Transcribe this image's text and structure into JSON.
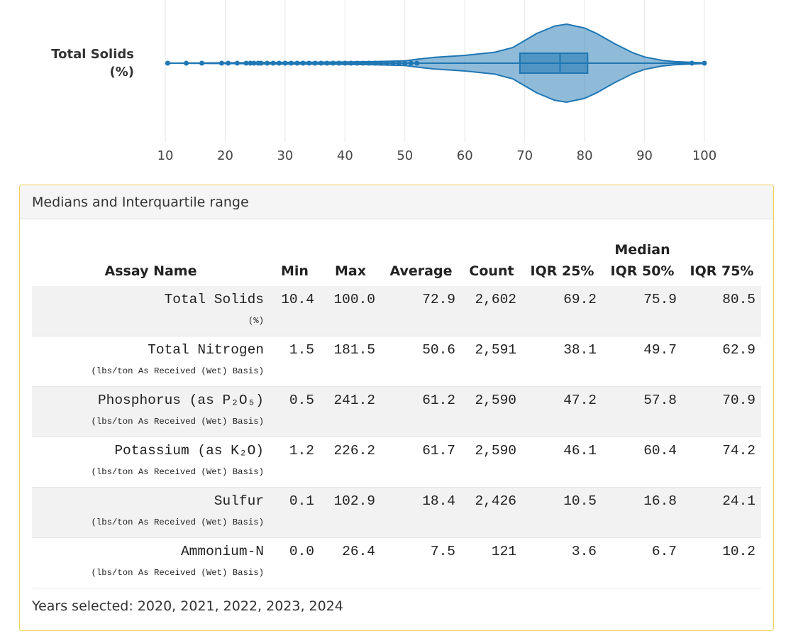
{
  "chart_data": {
    "type": "violin",
    "category": [
      "Total Solids",
      "(%)"
    ],
    "color": "#1f77b4",
    "xlim": [
      5,
      104.5
    ],
    "xticks": [
      10,
      20,
      30,
      40,
      50,
      60,
      70,
      80,
      90,
      100
    ],
    "grid": true,
    "violin": {
      "x": [
        10.4,
        20,
        30,
        40,
        45,
        50,
        52,
        55,
        60,
        65,
        68,
        70,
        72,
        75,
        77,
        80,
        82,
        85,
        88,
        90,
        93,
        95,
        98,
        100
      ],
      "density": [
        0,
        0.01,
        0.02,
        0.03,
        0.04,
        0.06,
        0.1,
        0.15,
        0.2,
        0.28,
        0.4,
        0.58,
        0.76,
        0.95,
        1,
        0.9,
        0.76,
        0.5,
        0.27,
        0.16,
        0.07,
        0.04,
        0.02,
        0.01
      ]
    },
    "box": {
      "min": 10.4,
      "q1": 69.2,
      "median": 75.9,
      "q3": 80.5,
      "max": 100
    },
    "points": [
      10.4,
      13.5,
      16.1,
      19.4,
      20.5,
      22,
      23.5,
      24.2,
      24.8,
      25.5,
      26,
      27,
      28,
      29,
      30,
      31,
      32,
      33,
      34,
      35,
      36,
      37,
      38,
      39,
      40,
      41,
      42,
      43,
      44,
      45,
      46,
      47,
      48,
      49,
      50,
      51,
      52,
      97.9,
      100
    ]
  },
  "panel": {
    "title": "Medians and Interquartile range",
    "table": {
      "headers": [
        "Assay Name",
        "Min",
        "Max",
        "Average",
        "Count",
        "IQR 25%",
        [
          "Median",
          "IQR 50%"
        ],
        "IQR 75%"
      ],
      "rows": [
        {
          "cells": [
            "Total Solids",
            "10.4",
            "100.0",
            "72.9",
            "2,602",
            "69.2",
            "75.9",
            "80.5"
          ],
          "unit": "(%)"
        },
        {
          "cells": [
            "Total Nitrogen",
            "1.5",
            "181.5",
            "50.6",
            "2,591",
            "38.1",
            "49.7",
            "62.9"
          ],
          "unit": "(lbs/ton As Received (Wet) Basis)"
        },
        {
          "cells": [
            "Phosphorus (as P₂O₅)",
            "0.5",
            "241.2",
            "61.2",
            "2,590",
            "47.2",
            "57.8",
            "70.9"
          ],
          "unit": "(lbs/ton As Received (Wet) Basis)"
        },
        {
          "cells": [
            "Potassium (as K₂O)",
            "1.2",
            "226.2",
            "61.7",
            "2,590",
            "46.1",
            "60.4",
            "74.2"
          ],
          "unit": "(lbs/ton As Received (Wet) Basis)"
        },
        {
          "cells": [
            "Sulfur",
            "0.1",
            "102.9",
            "18.4",
            "2,426",
            "10.5",
            "16.8",
            "24.1"
          ],
          "unit": "(lbs/ton As Received (Wet) Basis)"
        },
        {
          "cells": [
            "Ammonium-N",
            "0.0",
            "26.4",
            "7.5",
            "121",
            "3.6",
            "6.7",
            "10.2"
          ],
          "unit": "(lbs/ton As Received (Wet) Basis)"
        }
      ]
    },
    "footer": "Years selected: 2020, 2021, 2022, 2023, 2024"
  }
}
